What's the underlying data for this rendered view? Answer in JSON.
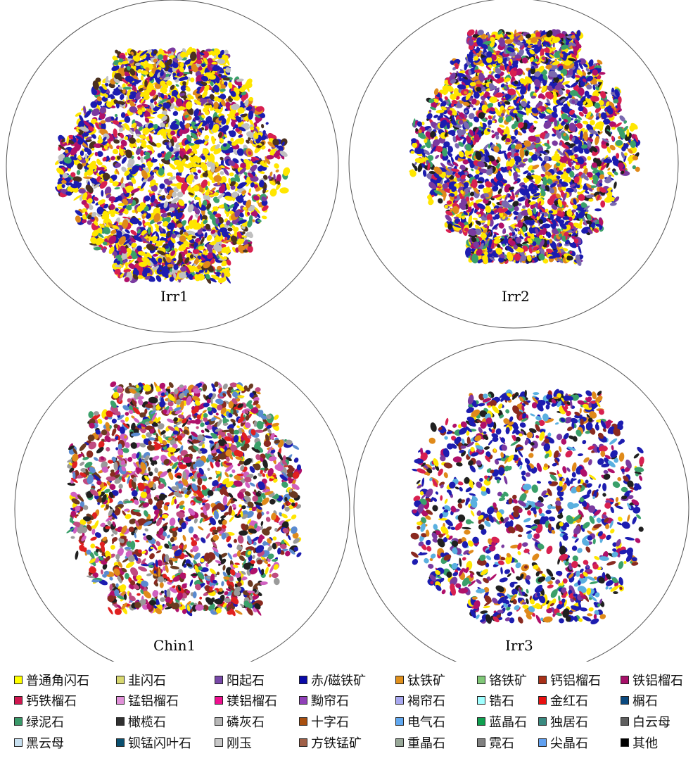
{
  "panels": [
    {
      "name": "Irr1",
      "density": 1.0,
      "palette": [
        "#ffe600",
        "#ffe600",
        "#ffe600",
        "#1c1cb0",
        "#1c1cb0",
        "#7a3aa0",
        "#b0106a",
        "#3aa06a",
        "#e08a1a",
        "#4a3020",
        "#d82050",
        "#c0c0c0",
        "#ffe600",
        "#1c1cb0"
      ]
    },
    {
      "name": "Irr2",
      "density": 1.0,
      "palette": [
        "#ffe600",
        "#ffe600",
        "#1c1cb0",
        "#1c1cb0",
        "#1c1cb0",
        "#7a3aa0",
        "#b0106a",
        "#3aa06a",
        "#e08a1a",
        "#d82050",
        "#202020",
        "#7a6ab0"
      ]
    },
    {
      "name": "Chin1",
      "density": 0.75,
      "palette": [
        "#8a2a20",
        "#3aa06a",
        "#202020",
        "#b0106a",
        "#e08a1a",
        "#c04a80",
        "#5a8ad0",
        "#1c1cb0",
        "#e02020",
        "#9a9a9a",
        "#d060c0",
        "#ffe600",
        "#6a3a20"
      ]
    },
    {
      "name": "Irr3",
      "density": 0.5,
      "palette": [
        "#1c1cb0",
        "#1c1cb0",
        "#1c1cb0",
        "#e08a1a",
        "#b0106a",
        "#7a3aa0",
        "#3aa06a",
        "#ffe600",
        "#202020",
        "#d82050",
        "#5ab0e0",
        "#8a2a20"
      ]
    }
  ],
  "legend": [
    {
      "label": "普通角闪石",
      "color": "#ffff00"
    },
    {
      "label": "韭闪石",
      "color": "#d8d870"
    },
    {
      "label": "阳起石",
      "color": "#7848a8"
    },
    {
      "label": "赤/磁铁矿",
      "color": "#0a0aa8"
    },
    {
      "label": "钛铁矿",
      "color": "#e0901c"
    },
    {
      "label": "铬铁矿",
      "color": "#80c878"
    },
    {
      "label": "钙铝榴石",
      "color": "#a83018"
    },
    {
      "label": "铁铝榴石",
      "color": "#a8106a"
    },
    {
      "label": "钙铁榴石",
      "color": "#d01850"
    },
    {
      "label": "锰铝榴石",
      "color": "#e090d8"
    },
    {
      "label": "镁铝榴石",
      "color": "#f01090"
    },
    {
      "label": "黝帘石",
      "color": "#9040b8"
    },
    {
      "label": "褐帘石",
      "color": "#a8a8f0"
    },
    {
      "label": "锆石",
      "color": "#a0ffff"
    },
    {
      "label": "金红石",
      "color": "#e81010"
    },
    {
      "label": "榍石",
      "color": "#0a4a80"
    },
    {
      "label": "绿泥石",
      "color": "#3a9a6a"
    },
    {
      "label": "橄榄石",
      "color": "#303030"
    },
    {
      "label": "磷灰石",
      "color": "#b8b8b8"
    },
    {
      "label": "十字石",
      "color": "#a85010"
    },
    {
      "label": "电气石",
      "color": "#60a8f0"
    },
    {
      "label": "蓝晶石",
      "color": "#10a050"
    },
    {
      "label": "独居石",
      "color": "#3a8a80"
    },
    {
      "label": "白云母",
      "color": "#606060"
    },
    {
      "label": "黑云母",
      "color": "#c8e0f0"
    },
    {
      "label": "钡锰闪叶石",
      "color": "#0a5070"
    },
    {
      "label": "刚玉",
      "color": "#c8c8c8"
    },
    {
      "label": "方铁锰矿",
      "color": "#a06048"
    },
    {
      "label": "重晶石",
      "color": "#98a898"
    },
    {
      "label": "霓石",
      "color": "#808080"
    },
    {
      "label": "尖晶石",
      "color": "#60a0f0"
    },
    {
      "label": "其他",
      "color": "#000000"
    }
  ]
}
